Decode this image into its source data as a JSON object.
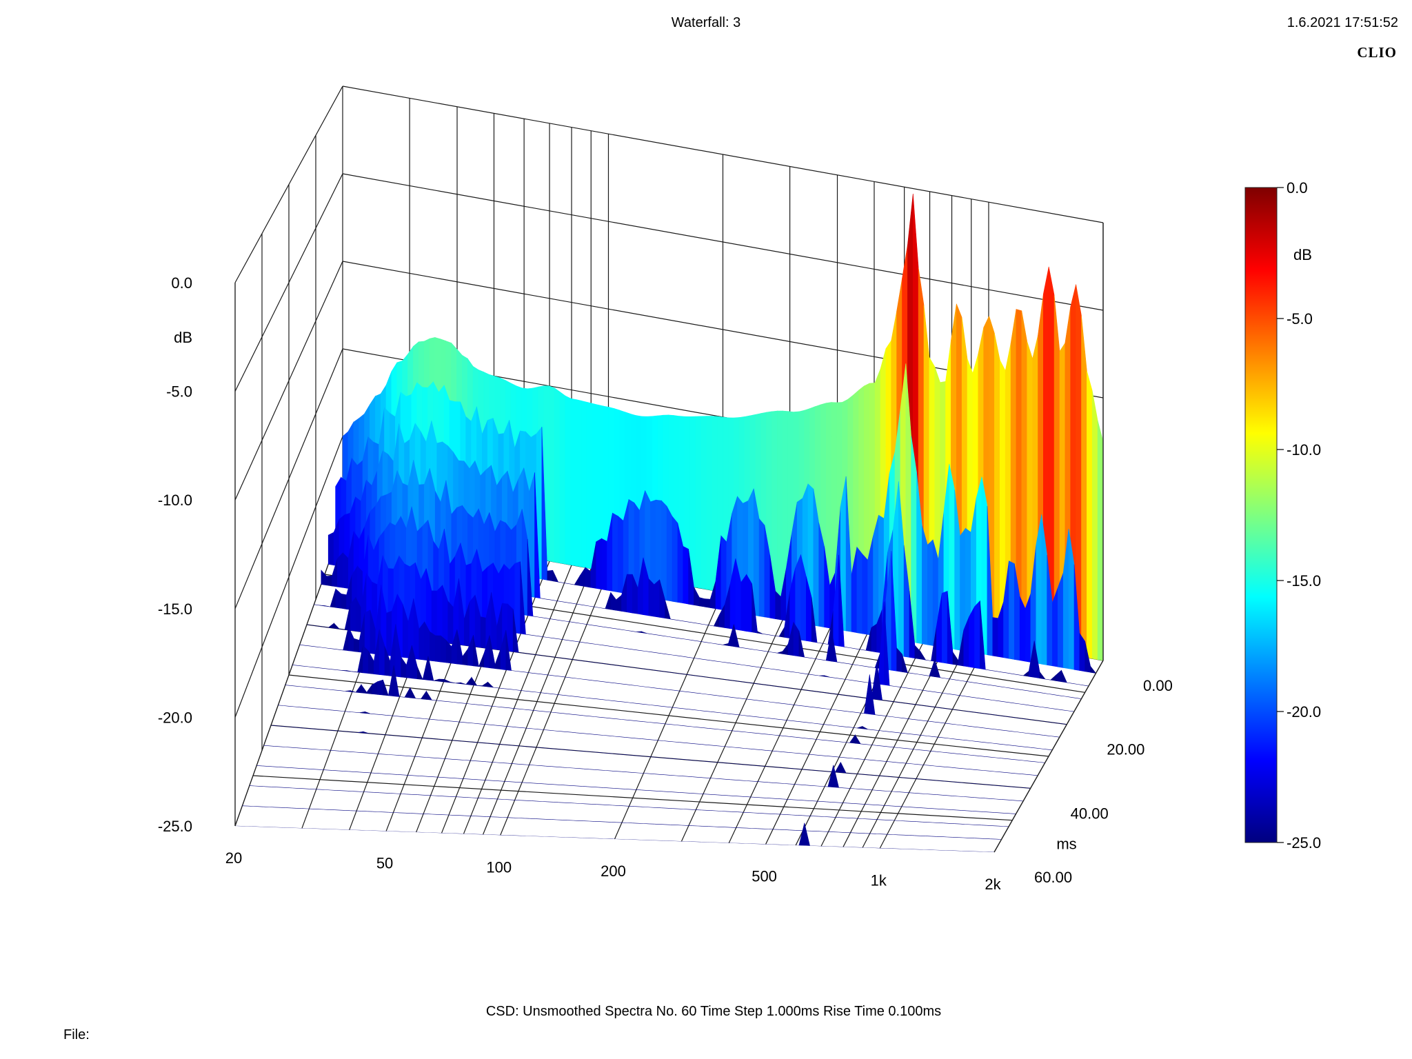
{
  "header": {
    "title": "Waterfall: 3",
    "timestamp": "1.6.2021 17:51:52",
    "brand": "CLIO"
  },
  "footer": {
    "info": "CSD:    Unsmoothed    Spectra No. 60    Time Step 1.000ms    Rise Time 0.100ms",
    "file_label": "File:"
  },
  "chart_data": {
    "type": "waterfall",
    "title": "Waterfall: 3",
    "x_axis": {
      "scale": "log",
      "range": [
        20,
        2000
      ],
      "ticks": [
        20,
        50,
        100,
        200,
        500,
        1000,
        2000
      ],
      "tick_labels": [
        "20",
        "50",
        "100",
        "200",
        "500",
        "1k",
        "2k"
      ],
      "gridlines": [
        20,
        30,
        40,
        50,
        60,
        70,
        80,
        90,
        100,
        200,
        300,
        400,
        500,
        600,
        700,
        800,
        900,
        1000,
        2000
      ]
    },
    "y_axis": {
      "label": "dB",
      "range": [
        -25,
        0
      ],
      "ticks": [
        0,
        -5,
        -10,
        -15,
        -20,
        -25
      ],
      "tick_labels": [
        "0.0",
        "-5.0",
        "-10.0",
        "-15.0",
        "-20.0",
        "-25.0"
      ]
    },
    "z_axis": {
      "label": "ms",
      "range": [
        0,
        60
      ],
      "ticks": [
        0,
        20,
        40,
        60
      ],
      "tick_labels": [
        "0.00",
        "20.00",
        "40.00",
        "60.00"
      ]
    },
    "colorbar": {
      "label": "dB",
      "range": [
        -25,
        0
      ],
      "ticks": [
        0,
        -5,
        -10,
        -15,
        -20,
        -25
      ],
      "tick_labels": [
        "0.0",
        "-5.0",
        "-10.0",
        "-15.0",
        "-20.0",
        "-25.0"
      ],
      "colormap": [
        "#00007f",
        "#0000ff",
        "#007fff",
        "#00ffff",
        "#7fff7f",
        "#ffff00",
        "#ff7f00",
        "#ff0000",
        "#7f0000"
      ]
    },
    "spectrum_t0": [
      {
        "f": 20,
        "db": -20.0
      },
      {
        "f": 22,
        "db": -18.8
      },
      {
        "f": 25,
        "db": -17.2
      },
      {
        "f": 28,
        "db": -15.2
      },
      {
        "f": 32,
        "db": -13.8
      },
      {
        "f": 35,
        "db": -13.4
      },
      {
        "f": 38,
        "db": -13.5
      },
      {
        "f": 42,
        "db": -14.2
      },
      {
        "f": 45,
        "db": -14.8
      },
      {
        "f": 50,
        "db": -15.0
      },
      {
        "f": 60,
        "db": -15.4
      },
      {
        "f": 70,
        "db": -15.0
      },
      {
        "f": 80,
        "db": -15.5
      },
      {
        "f": 100,
        "db": -15.6
      },
      {
        "f": 120,
        "db": -15.8
      },
      {
        "f": 150,
        "db": -15.4
      },
      {
        "f": 200,
        "db": -15.0
      },
      {
        "f": 300,
        "db": -14.0
      },
      {
        "f": 400,
        "db": -13.0
      },
      {
        "f": 500,
        "db": -11.5
      },
      {
        "f": 550,
        "db": -9.0
      },
      {
        "f": 600,
        "db": -5.0
      },
      {
        "f": 630,
        "db": -0.2
      },
      {
        "f": 660,
        "db": -5.0
      },
      {
        "f": 700,
        "db": -9.5
      },
      {
        "f": 760,
        "db": -11.0
      },
      {
        "f": 830,
        "db": -6.0
      },
      {
        "f": 900,
        "db": -10.0
      },
      {
        "f": 1000,
        "db": -6.5
      },
      {
        "f": 1100,
        "db": -9.5
      },
      {
        "f": 1200,
        "db": -5.5
      },
      {
        "f": 1300,
        "db": -8.5
      },
      {
        "f": 1450,
        "db": -3.0
      },
      {
        "f": 1550,
        "db": -8.0
      },
      {
        "f": 1700,
        "db": -3.8
      },
      {
        "f": 1850,
        "db": -9.5
      },
      {
        "f": 2000,
        "db": -12.5
      }
    ]
  }
}
